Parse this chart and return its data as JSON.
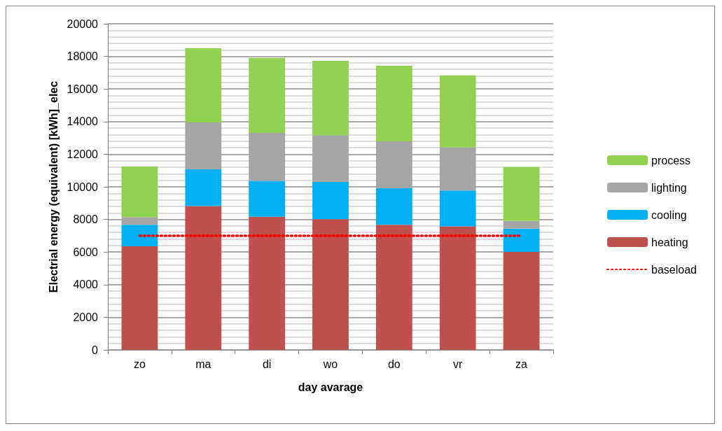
{
  "chart_data": {
    "type": "bar",
    "stacked": true,
    "xlabel": "day avarage",
    "ylabel": "Electrial energy (equivalent) [kWh]_elec",
    "categories": [
      "zo",
      "ma",
      "di",
      "wo",
      "do",
      "vr",
      "za"
    ],
    "series": [
      {
        "name": "heating",
        "color": "#c0504d",
        "values": [
          6350,
          8820,
          8160,
          8020,
          7670,
          7580,
          6010
        ]
      },
      {
        "name": "cooling",
        "color": "#00b0f0",
        "values": [
          1320,
          2250,
          2210,
          2280,
          2240,
          2200,
          1430
        ]
      },
      {
        "name": "lighting",
        "color": "#a6a6a6",
        "values": [
          470,
          2880,
          2940,
          2860,
          2880,
          2650,
          470
        ]
      },
      {
        "name": "process",
        "color": "#92d050",
        "values": [
          3100,
          4550,
          4600,
          4560,
          4640,
          4410,
          3300
        ]
      },
      {
        "name": "baseload",
        "type": "line",
        "color": "#ff0000",
        "line_style": "dotted",
        "marker": "none",
        "values": [
          7000,
          7000,
          7000,
          7000,
          7000,
          7000,
          7000
        ]
      }
    ],
    "ylim": [
      0,
      20000
    ],
    "yticks": [
      0,
      2000,
      4000,
      6000,
      8000,
      10000,
      12000,
      14000,
      16000,
      18000,
      20000
    ],
    "grid": "y",
    "legend": "right"
  }
}
